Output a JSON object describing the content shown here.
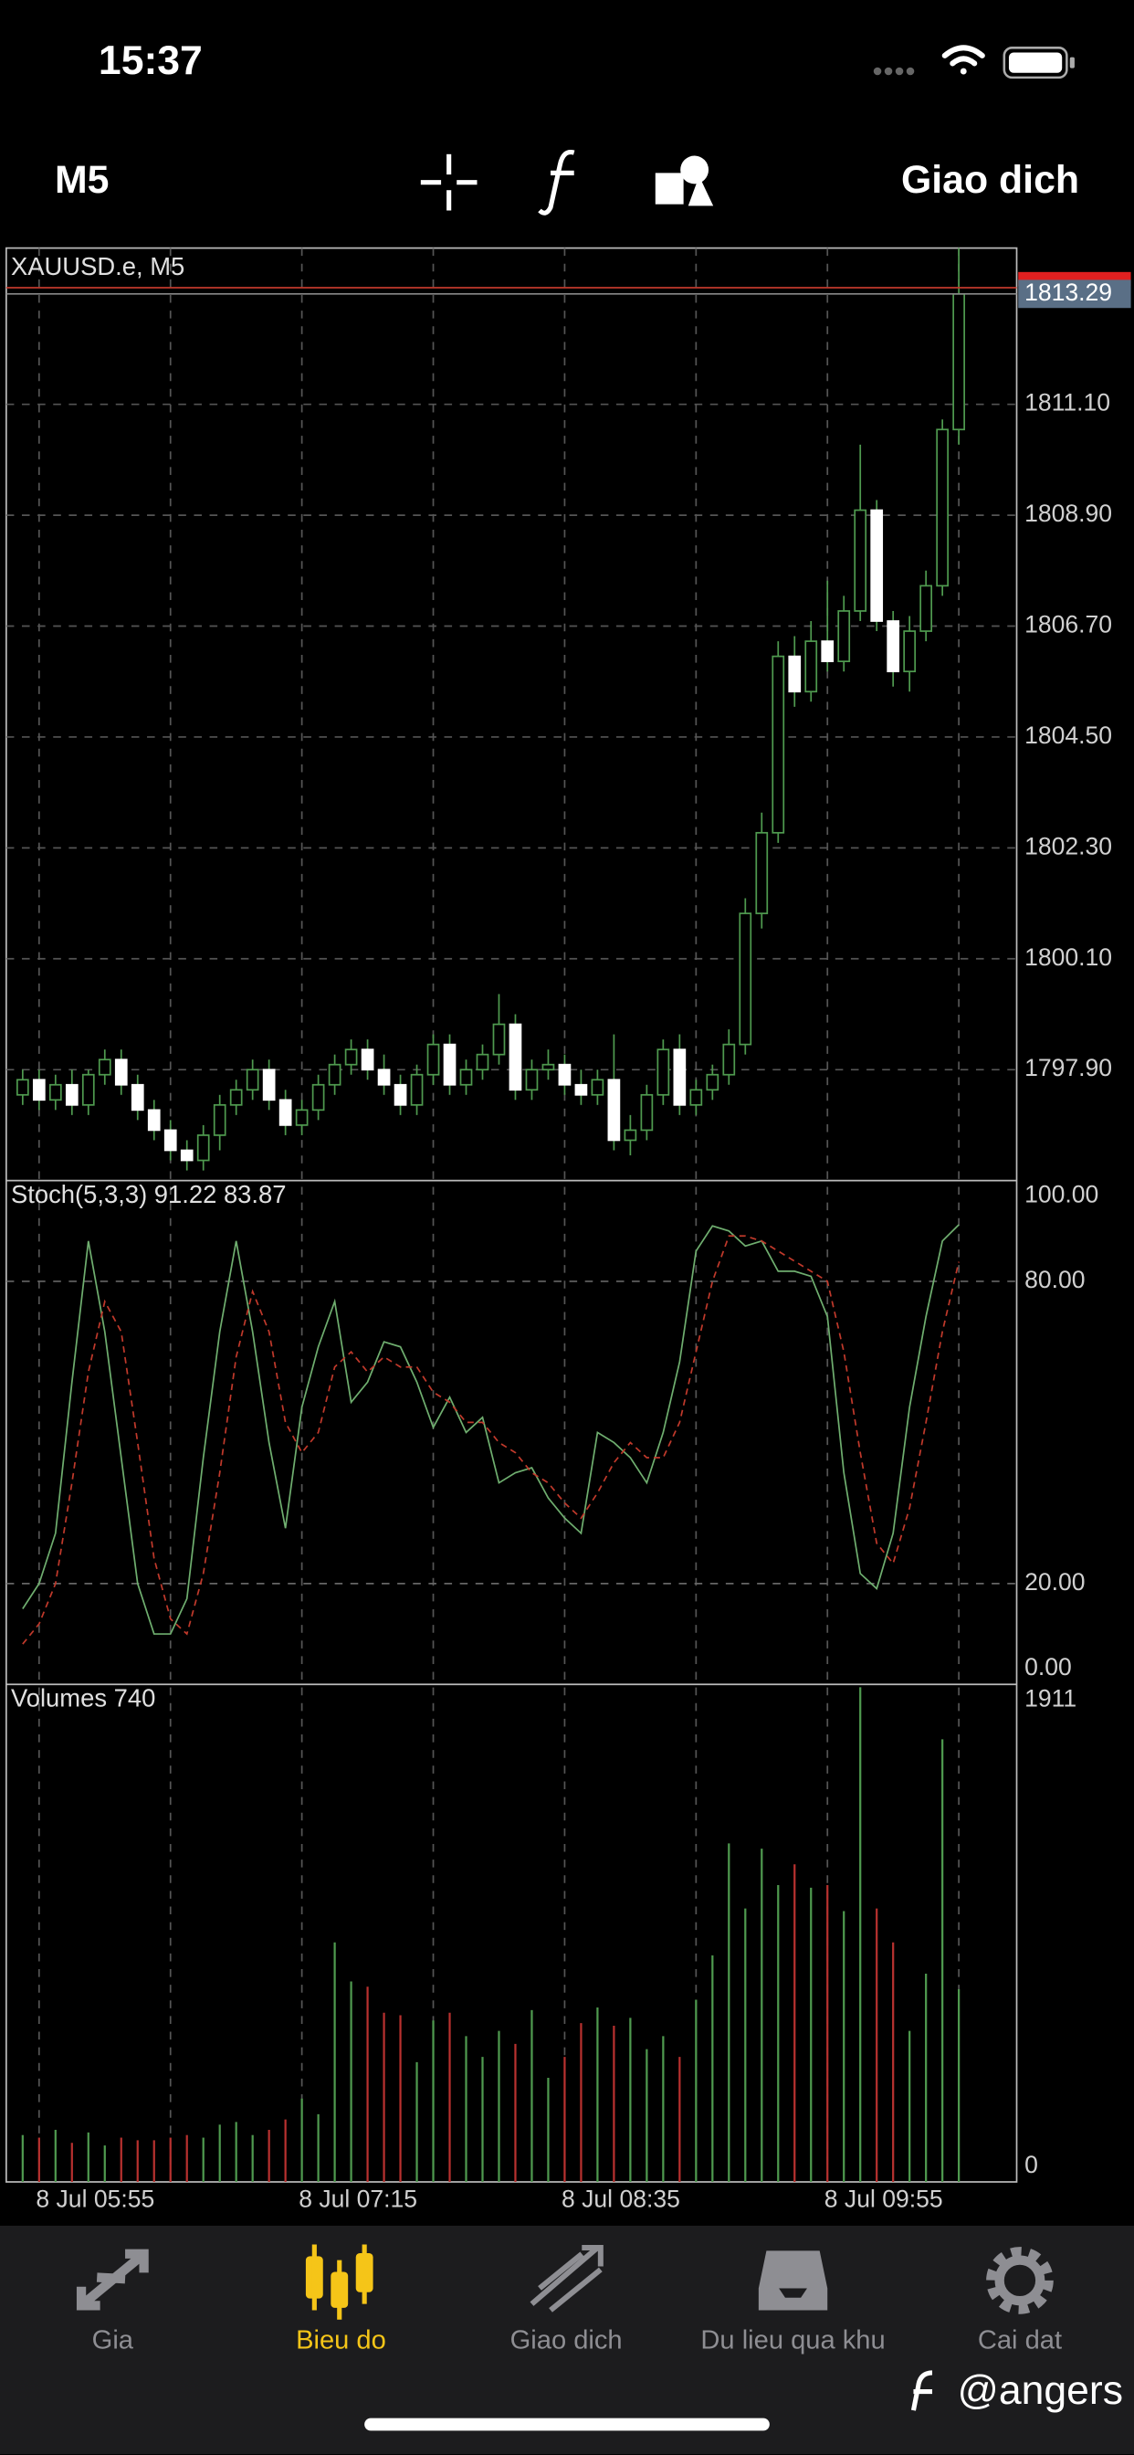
{
  "status_bar": {
    "time": "15:37"
  },
  "toolbar": {
    "timeframe": "M5",
    "trade": "Giao dich"
  },
  "chart_data": [
    {
      "type": "candlestick",
      "title": "XAUUSD.e, M5",
      "open": [
        1797.4,
        1797.7,
        1797.3,
        1797.6,
        1797.2,
        1797.8,
        1798.1,
        1797.6,
        1797.1,
        1796.7,
        1796.3,
        1796.1,
        1796.6,
        1797.2,
        1797.5,
        1797.9,
        1797.3,
        1796.8,
        1797.1,
        1797.6,
        1798.0,
        1798.3,
        1797.9,
        1797.6,
        1797.2,
        1797.8,
        1798.4,
        1797.6,
        1797.9,
        1798.2,
        1798.8,
        1797.5,
        1797.9,
        1798.0,
        1797.6,
        1797.4,
        1797.7,
        1796.5,
        1796.7,
        1797.4,
        1798.3,
        1797.2,
        1797.5,
        1797.8,
        1798.4,
        1801.0,
        1802.6,
        1806.1,
        1805.4,
        1806.4,
        1806.0,
        1807.0,
        1809.0,
        1806.8,
        1805.8,
        1806.6,
        1807.5,
        1810.6
      ],
      "high": [
        1797.9,
        1797.9,
        1797.8,
        1797.9,
        1797.9,
        1798.3,
        1798.3,
        1797.8,
        1797.3,
        1796.9,
        1796.5,
        1796.8,
        1797.4,
        1797.7,
        1798.1,
        1798.1,
        1797.5,
        1797.3,
        1797.8,
        1798.2,
        1798.5,
        1798.5,
        1798.2,
        1797.8,
        1798.0,
        1798.6,
        1798.6,
        1798.1,
        1798.4,
        1799.4,
        1799.0,
        1798.1,
        1798.3,
        1798.2,
        1797.9,
        1797.9,
        1798.6,
        1797.0,
        1797.6,
        1798.5,
        1798.6,
        1797.7,
        1798.0,
        1798.7,
        1801.3,
        1803.0,
        1806.4,
        1806.5,
        1806.8,
        1807.6,
        1807.3,
        1810.3,
        1809.2,
        1807.0,
        1806.9,
        1807.8,
        1810.8,
        1814.2
      ],
      "low": [
        1797.2,
        1797.1,
        1797.1,
        1797.0,
        1797.0,
        1797.6,
        1797.4,
        1796.9,
        1796.5,
        1796.1,
        1795.9,
        1795.9,
        1796.3,
        1797.0,
        1797.3,
        1797.1,
        1796.6,
        1796.6,
        1796.9,
        1797.4,
        1797.8,
        1797.7,
        1797.4,
        1797.0,
        1797.0,
        1797.6,
        1797.4,
        1797.4,
        1797.7,
        1798.0,
        1797.3,
        1797.3,
        1797.7,
        1797.4,
        1797.2,
        1797.2,
        1796.3,
        1796.2,
        1796.5,
        1797.2,
        1797.0,
        1797.0,
        1797.3,
        1797.6,
        1798.2,
        1800.7,
        1802.4,
        1805.1,
        1805.2,
        1805.8,
        1805.8,
        1806.8,
        1806.6,
        1805.5,
        1805.4,
        1806.4,
        1807.3,
        1810.3
      ],
      "close": [
        1797.7,
        1797.3,
        1797.6,
        1797.2,
        1797.8,
        1798.1,
        1797.6,
        1797.1,
        1796.7,
        1796.3,
        1796.1,
        1796.6,
        1797.2,
        1797.5,
        1797.9,
        1797.3,
        1796.8,
        1797.1,
        1797.6,
        1798.0,
        1798.3,
        1797.9,
        1797.6,
        1797.2,
        1797.8,
        1798.4,
        1797.6,
        1797.9,
        1798.2,
        1798.8,
        1797.5,
        1797.9,
        1798.0,
        1797.6,
        1797.4,
        1797.7,
        1796.5,
        1796.7,
        1797.4,
        1798.3,
        1797.2,
        1797.5,
        1797.8,
        1798.4,
        1801.0,
        1802.6,
        1806.1,
        1805.4,
        1806.4,
        1806.0,
        1807.0,
        1809.0,
        1806.8,
        1805.8,
        1806.6,
        1807.5,
        1810.6,
        1813.29
      ],
      "up_color": "#4f9a4f",
      "down_color": "#ffffff",
      "current_price": 1813.29,
      "ylim": [
        1795.7,
        1814.2
      ],
      "yticks": [
        {
          "value": 1811.1,
          "label": "1811.10"
        },
        {
          "value": 1808.9,
          "label": "1808.90"
        },
        {
          "value": 1806.7,
          "label": "1806.70"
        },
        {
          "value": 1804.5,
          "label": "1804.50"
        },
        {
          "value": 1802.3,
          "label": "1802.30"
        },
        {
          "value": 1800.1,
          "label": "1800.10"
        },
        {
          "value": 1797.9,
          "label": "1797.90"
        }
      ],
      "xticks": [
        {
          "value": 1,
          "label": "8 Jul 05:55"
        },
        {
          "value": 17,
          "label": "8 Jul 07:15"
        },
        {
          "value": 33,
          "label": "8 Jul 08:35"
        },
        {
          "value": 49,
          "label": "8 Jul 09:55"
        }
      ],
      "grid": true
    },
    {
      "type": "line",
      "title": "Stoch(5,3,3) 91.22 83.87",
      "series": [
        {
          "color": "#6fae6f",
          "values": [
            15,
            20,
            30,
            60,
            88,
            70,
            45,
            20,
            10,
            10,
            17,
            45,
            70,
            88,
            70,
            48,
            31,
            55,
            67,
            76,
            56,
            60,
            68,
            67,
            60,
            51,
            57,
            50,
            53,
            40,
            42,
            43,
            37,
            33,
            30,
            50,
            48,
            45,
            40,
            50,
            64,
            86,
            91,
            90,
            87,
            88,
            82,
            82,
            81,
            73,
            42,
            22,
            19,
            30,
            55,
            73,
            88,
            91.22
          ]
        },
        {
          "color": "#c0392b",
          "dashed": true,
          "values": [
            8,
            12,
            20,
            40,
            62,
            76,
            70,
            48,
            25,
            13,
            10,
            22,
            42,
            65,
            78,
            70,
            52,
            46,
            50,
            63,
            66,
            62,
            65,
            63,
            63,
            58,
            56,
            52,
            52,
            48,
            46,
            42,
            40,
            36,
            33,
            38,
            44,
            48,
            45,
            45,
            52,
            66,
            80,
            89,
            89,
            88,
            86,
            84,
            82,
            80,
            66,
            46,
            28,
            24,
            35,
            52,
            70,
            83.87
          ]
        }
      ],
      "ylim": [
        0,
        100
      ],
      "yticks": [
        {
          "value": 100,
          "label": "100.00"
        },
        {
          "value": 80,
          "label": "80.00"
        },
        {
          "value": 20,
          "label": "20.00"
        },
        {
          "value": 0,
          "label": "0.00"
        }
      ],
      "grid": true
    },
    {
      "type": "bar",
      "title": "Volumes 740",
      "values": [
        180,
        170,
        200,
        150,
        190,
        140,
        170,
        160,
        160,
        170,
        180,
        170,
        220,
        230,
        180,
        200,
        240,
        320,
        260,
        920,
        770,
        750,
        650,
        640,
        460,
        620,
        650,
        560,
        480,
        580,
        530,
        660,
        400,
        480,
        610,
        670,
        600,
        630,
        510,
        560,
        480,
        700,
        870,
        1300,
        1050,
        1280,
        1140,
        1220,
        1130,
        1140,
        1040,
        1900,
        1050,
        920,
        580,
        800,
        1700,
        740
      ],
      "ylim": [
        0,
        1911
      ],
      "yticks": [
        1911,
        0
      ]
    }
  ],
  "tab_bar": {
    "tabs": [
      "Gia",
      "Bieu do",
      "Giao dich",
      "Du lieu qua khu",
      "Cai dat"
    ],
    "active": 1
  },
  "watermark": "@angers"
}
